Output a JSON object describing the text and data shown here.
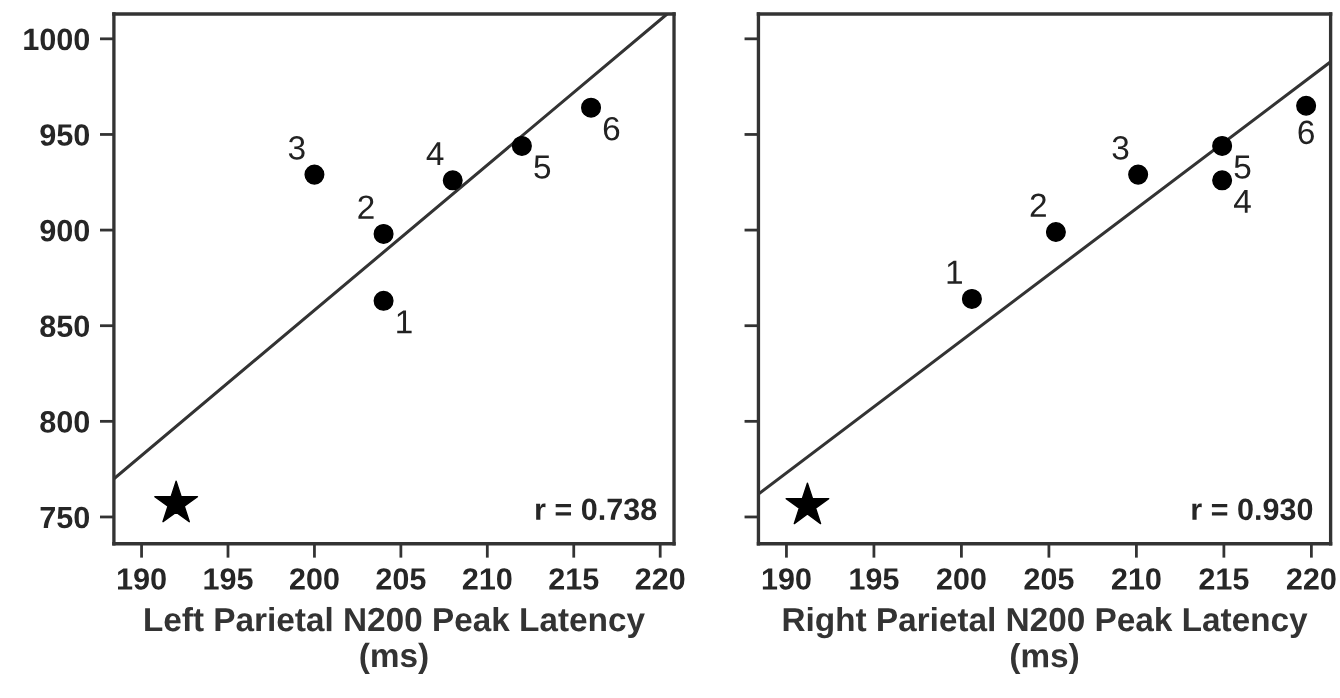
{
  "chart_data": [
    {
      "type": "scatter",
      "xlabel": "Left Parietal N200 Peak Latency\n(ms)",
      "xlim": [
        188.4,
        220.8
      ],
      "ylim": [
        736,
        1013
      ],
      "xticks": [
        190,
        195,
        200,
        205,
        210,
        215,
        220
      ],
      "yticks": [
        750,
        800,
        850,
        900,
        950,
        1000
      ],
      "grid": false,
      "legend": false,
      "series": [
        {
          "type": "scatter",
          "marker": "circle",
          "color": "#000000",
          "x": [
            204,
            204,
            200,
            208,
            212,
            216
          ],
          "values": [
            863,
            898,
            929,
            926,
            944,
            964
          ]
        },
        {
          "type": "scatter",
          "marker": "star",
          "color": "#000000",
          "x": [
            192
          ],
          "values": [
            757
          ]
        },
        {
          "type": "line",
          "line_style": "solid",
          "color": "#333333",
          "x": [
            188.4,
            220.4
          ],
          "values": [
            770,
            1013
          ]
        }
      ],
      "annotations": [
        {
          "text": "1",
          "x": 204,
          "y": 863
        },
        {
          "text": "2",
          "x": 204,
          "y": 898
        },
        {
          "text": "3",
          "x": 200,
          "y": 929
        },
        {
          "text": "4",
          "x": 208,
          "y": 926
        },
        {
          "text": "5",
          "x": 212,
          "y": 944
        },
        {
          "text": "6",
          "x": 216,
          "y": 964
        },
        "r = 0.738"
      ]
    },
    {
      "type": "scatter",
      "xlabel": "Right Parietal N200 Peak Latency\n(ms)",
      "xlim": [
        188.4,
        221.1
      ],
      "ylim": [
        736,
        1013
      ],
      "xticks": [
        190,
        195,
        200,
        205,
        210,
        215,
        220
      ],
      "yticks": [
        750,
        800,
        850,
        900,
        950,
        1000
      ],
      "tick_labels": "x",
      "grid": false,
      "legend": false,
      "series": [
        {
          "type": "scatter",
          "marker": "circle",
          "color": "#000000",
          "x": [
            200.6,
            205.4,
            210.1,
            214.9,
            214.9,
            219.7
          ],
          "values": [
            864,
            899,
            929,
            926,
            944,
            965
          ]
        },
        {
          "type": "scatter",
          "marker": "star",
          "color": "#000000",
          "x": [
            191.2
          ],
          "values": [
            756
          ]
        },
        {
          "type": "line",
          "line_style": "solid",
          "color": "#333333",
          "x": [
            188.4,
            221.1
          ],
          "values": [
            762,
            988
          ]
        }
      ],
      "annotations": [
        {
          "text": "1",
          "x": 200.6,
          "y": 864
        },
        {
          "text": "2",
          "x": 205.4,
          "y": 899
        },
        {
          "text": "3",
          "x": 210.1,
          "y": 929
        },
        {
          "text": "4",
          "x": 214.9,
          "y": 926
        },
        {
          "text": "5",
          "x": 214.9,
          "y": 944
        },
        {
          "text": "6",
          "x": 219.7,
          "y": 965
        },
        "r = 0.930"
      ]
    }
  ]
}
